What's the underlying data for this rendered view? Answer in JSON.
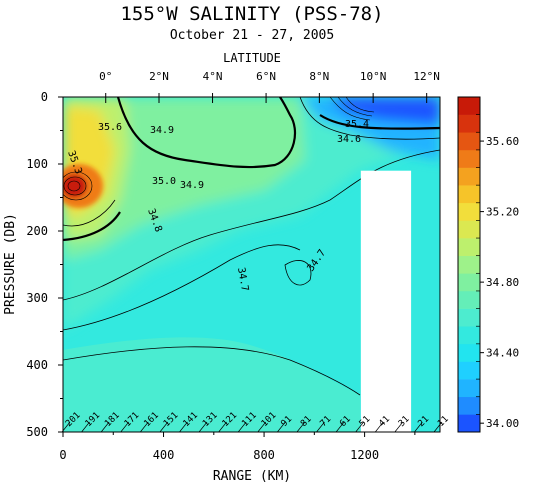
{
  "chart_data": {
    "type": "heatmap",
    "title": "155°W SALINITY (PSS-78)",
    "subtitle": "October 21 - 27, 2005",
    "xlabel": "RANGE (KM)",
    "ylabel": "PRESSURE (DB)",
    "top_axis_label": "LATITUDE",
    "xlim": [
      0,
      1500
    ],
    "ylim": [
      500,
      0
    ],
    "x_ticks": [
      0,
      400,
      800,
      1200
    ],
    "y_ticks": [
      0,
      100,
      200,
      300,
      400,
      500
    ],
    "lat_ticks": [
      {
        "label": "0°",
        "range_km": 170
      },
      {
        "label": "2°N",
        "range_km": 382
      },
      {
        "label": "4°N",
        "range_km": 595
      },
      {
        "label": "6°N",
        "range_km": 808
      },
      {
        "label": "8°N",
        "range_km": 1020
      },
      {
        "label": "10°N",
        "range_km": 1234
      },
      {
        "label": "12°N",
        "range_km": 1447
      }
    ],
    "colorbar": {
      "min": 33.95,
      "max": 35.85,
      "step": 0.1,
      "tick_labels": [
        "34.00",
        "34.40",
        "34.80",
        "35.20",
        "35.60"
      ],
      "colors": [
        "#1b54ff",
        "#1f8cff",
        "#20b4ff",
        "#1fd0ff",
        "#22e4ef",
        "#33e9df",
        "#4deccf",
        "#64eeb8",
        "#7ff0a0",
        "#9ef28a",
        "#bdf06d",
        "#dbe851",
        "#f2de3b",
        "#f6c429",
        "#f4a21f",
        "#ef7b18",
        "#e55612",
        "#d8330d",
        "#c81a08"
      ]
    },
    "contour_labels": [
      "35.3",
      "35.6",
      "34.9",
      "35.0",
      "34.9",
      "34.8",
      "34.7",
      "34.7",
      "34.6",
      "35.4"
    ],
    "station_labels": [
      "201",
      "191",
      "181",
      "171",
      "161",
      "151",
      "141",
      "131",
      "121",
      "111",
      "101",
      "91",
      "81",
      "71",
      "61",
      "51",
      "41",
      "31",
      "21",
      "11"
    ],
    "missing_data_regions": [
      {
        "x": [
          1185,
          1385
        ],
        "y": [
          110,
          500
        ]
      }
    ],
    "salinity_features": [
      {
        "name": "equatorial-high-core",
        "x_km": 35,
        "pressure_db": 125,
        "value": 35.75
      },
      {
        "name": "western-high-band",
        "x_km": 60,
        "pressure_db": 70,
        "value": 35.35
      },
      {
        "name": "north-fresh-surface",
        "x_km": 1400,
        "pressure_db": 5,
        "value": 34.0
      }
    ]
  }
}
